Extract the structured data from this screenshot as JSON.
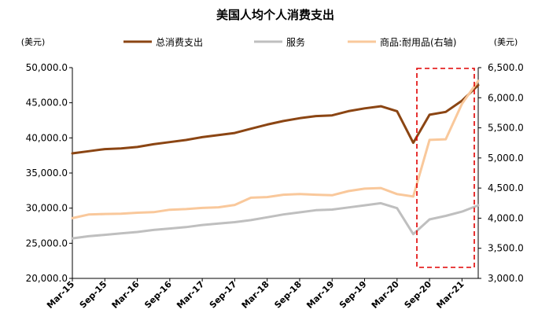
{
  "chart_data": {
    "type": "line",
    "title": "美国人均个人消费支出",
    "left_unit": "(美元)",
    "right_unit": "(美元)",
    "x_tick_labels": [
      "Mar-15",
      "Sep-15",
      "Mar-16",
      "Sep-16",
      "Mar-17",
      "Sep-17",
      "Mar-18",
      "Sep-18",
      "Mar-19",
      "Sep-19",
      "Mar-20",
      "Sep-20",
      "Mar-21"
    ],
    "y_left": {
      "min": 20000,
      "max": 50000,
      "step": 5000,
      "tick_labels": [
        "20,000.0",
        "25,000.0",
        "30,000.0",
        "35,000.0",
        "40,000.0",
        "45,000.0",
        "50,000.0"
      ]
    },
    "y_right": {
      "min": 3000,
      "max": 6500,
      "step": 500,
      "tick_labels": [
        "3,000.0",
        "3,500.0",
        "4,000.0",
        "4,500.0",
        "5,000.0",
        "5,500.0",
        "6,000.0",
        "6,500.0"
      ]
    },
    "legend_position": "top",
    "grid": false,
    "colors": {
      "total": "#8B4513",
      "services": "#BFBFBF",
      "goods": "#F9C89B",
      "highlight": "#E00000"
    },
    "series": [
      {
        "name": "总消费支出",
        "axis": "left",
        "values": [
          37800,
          38100,
          38400,
          38500,
          38700,
          39100,
          39400,
          39700,
          40100,
          40400,
          40700,
          41300,
          41900,
          42400,
          42800,
          43100,
          43200,
          43800,
          44200,
          44500,
          43800,
          39300,
          43300,
          43700,
          45300,
          47500
        ]
      },
      {
        "name": "服务",
        "axis": "left",
        "values": [
          25700,
          26000,
          26200,
          26400,
          26600,
          26900,
          27100,
          27300,
          27600,
          27800,
          28000,
          28300,
          28700,
          29100,
          29400,
          29700,
          29800,
          30100,
          30400,
          30700,
          30000,
          26300,
          28400,
          28900,
          29500,
          30400
        ]
      },
      {
        "name": "商品:耐用品(右轴)",
        "axis": "right",
        "values": [
          4000,
          4060,
          4070,
          4075,
          4090,
          4100,
          4140,
          4150,
          4170,
          4180,
          4220,
          4340,
          4350,
          4390,
          4400,
          4390,
          4380,
          4450,
          4490,
          4500,
          4400,
          4360,
          5300,
          5310,
          5900,
          6280
        ]
      }
    ]
  }
}
